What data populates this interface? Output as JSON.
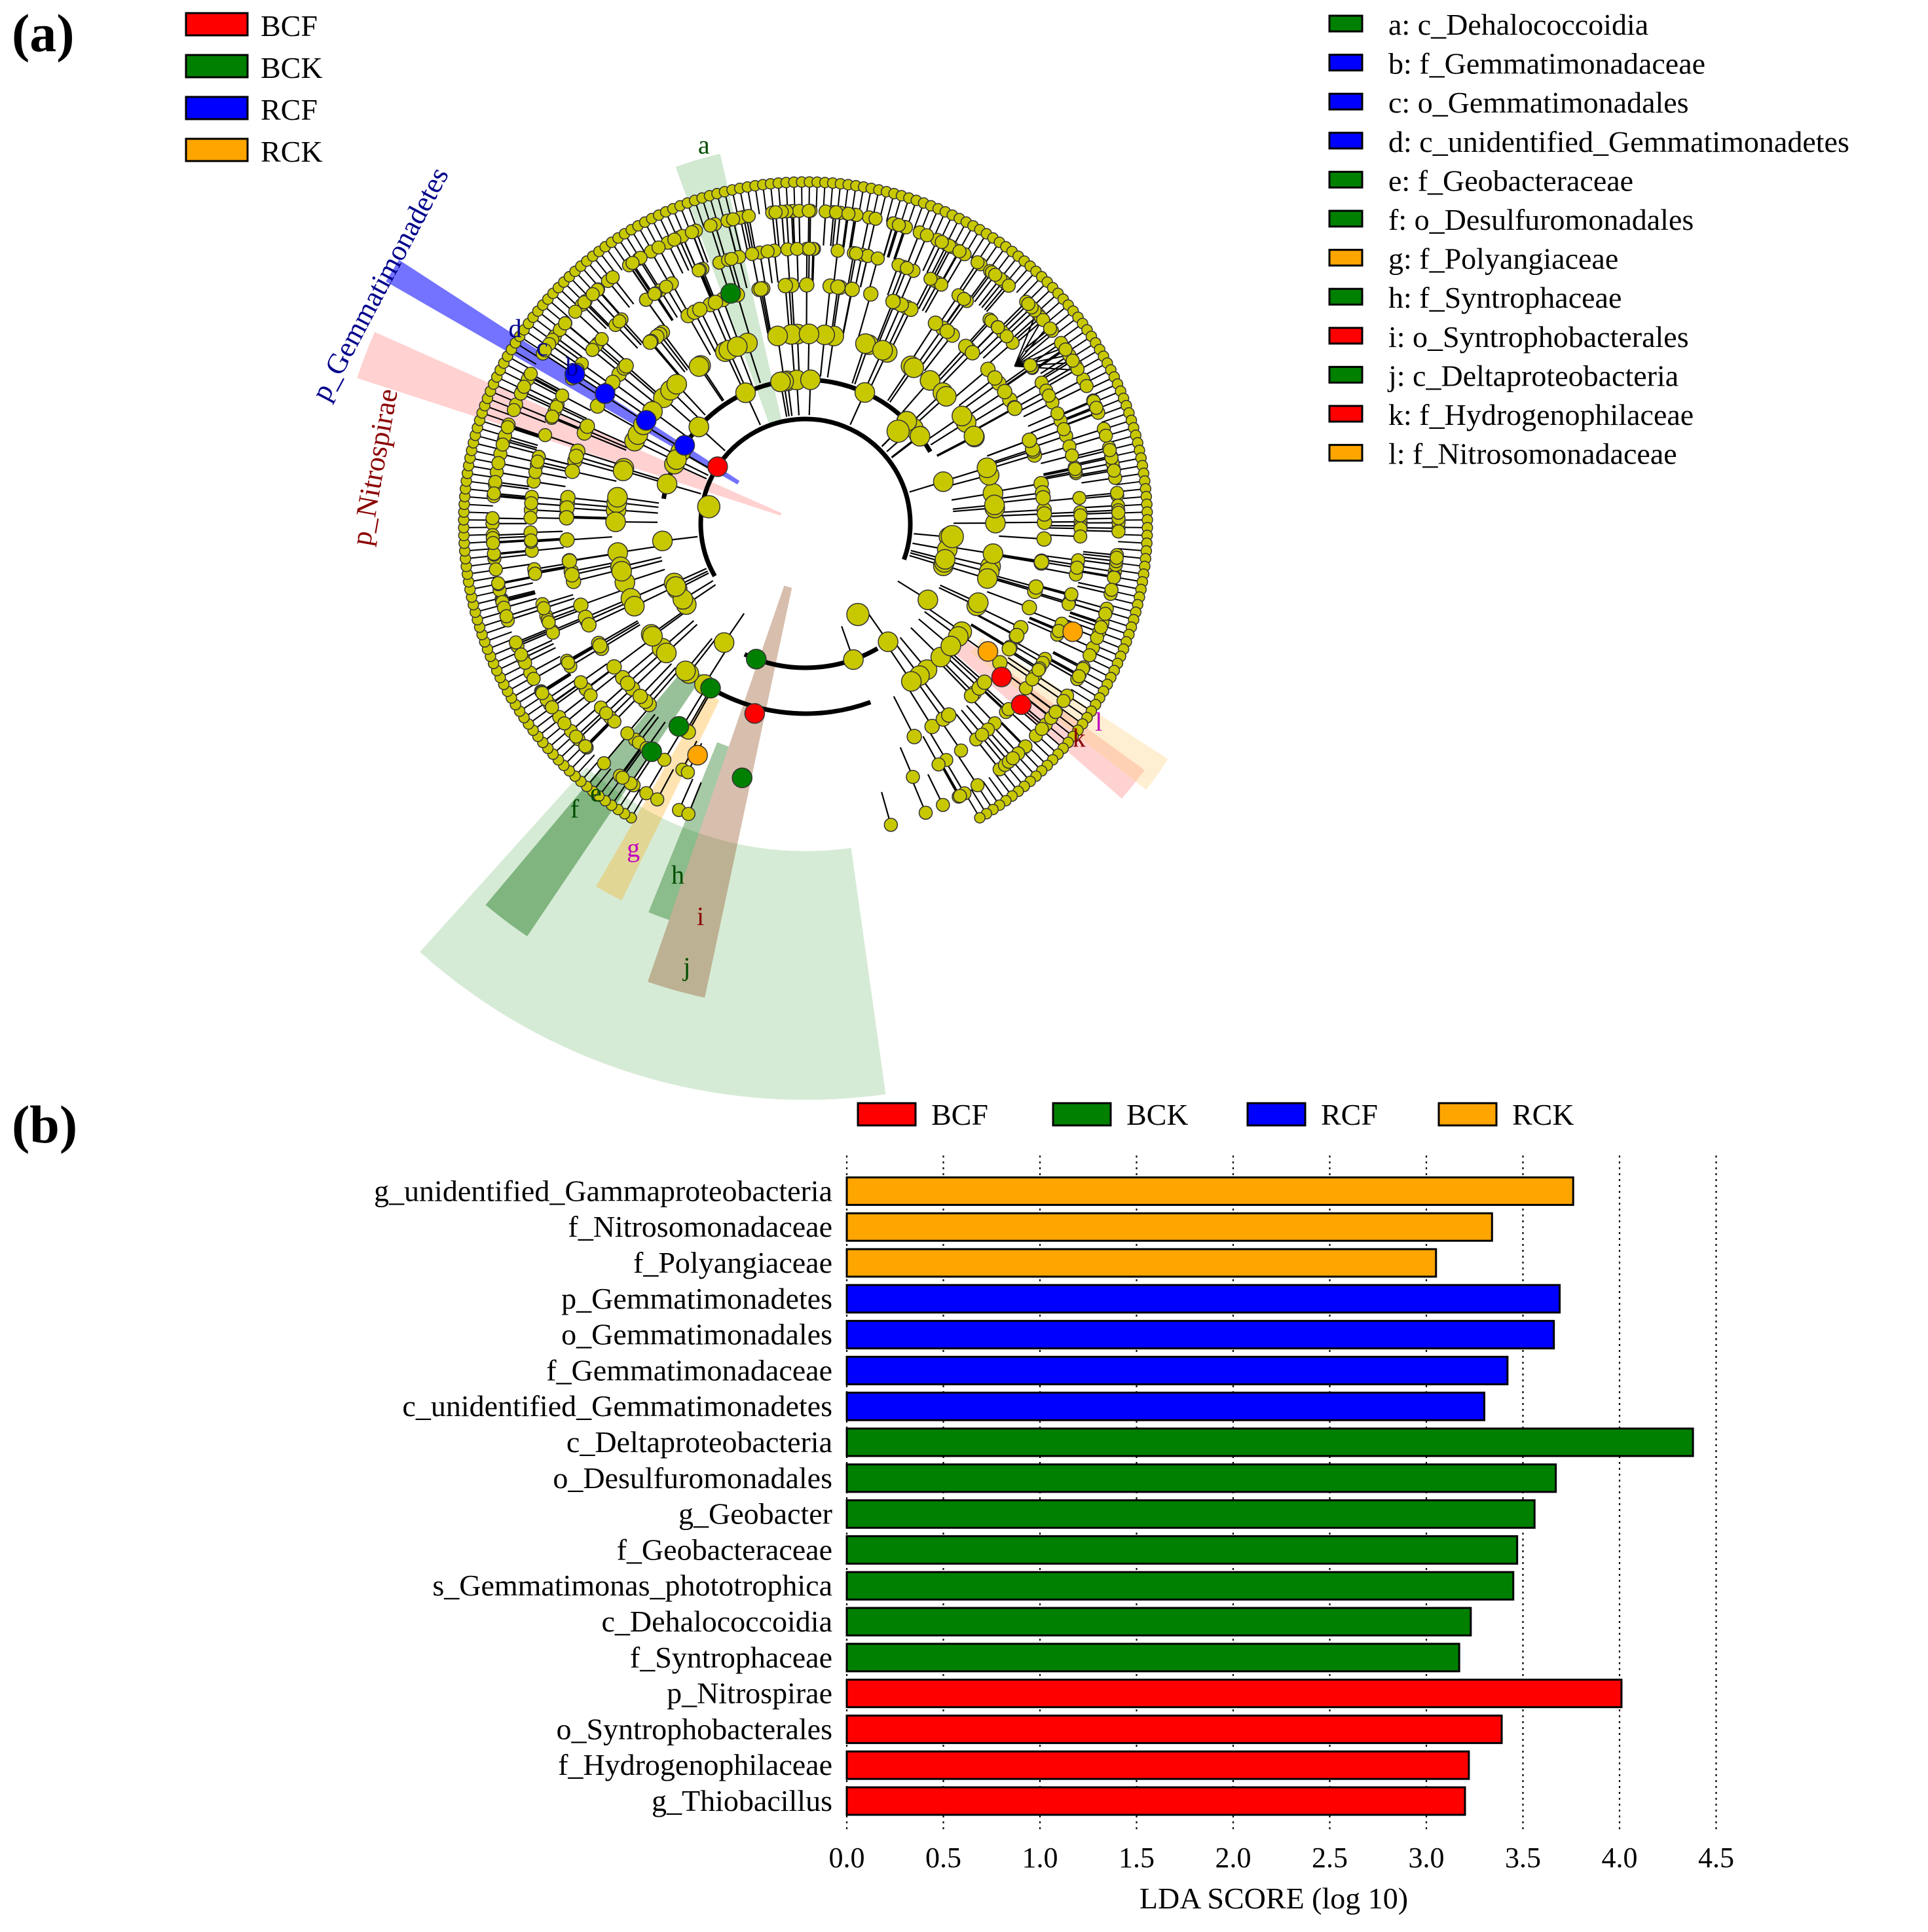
{
  "panel_a": {
    "label": "(a)",
    "group_legend": [
      {
        "name": "BCF",
        "color": "#ff0000"
      },
      {
        "name": "BCK",
        "color": "#008000"
      },
      {
        "name": "RCF",
        "color": "#0000ff"
      },
      {
        "name": "RCK",
        "color": "#ffa500"
      }
    ],
    "clade_legend": [
      {
        "key": "a",
        "text": "a: c_Dehalococcoidia",
        "group": "BCK",
        "color": "#008000"
      },
      {
        "key": "b",
        "text": "b: f_Gemmatimonadaceae",
        "group": "RCF",
        "color": "#0000ff"
      },
      {
        "key": "c",
        "text": "c: o_Gemmatimonadales",
        "group": "RCF",
        "color": "#0000ff"
      },
      {
        "key": "d",
        "text": "d: c_unidentified_Gemmatimonadetes",
        "group": "RCF",
        "color": "#0000ff"
      },
      {
        "key": "e",
        "text": "e: f_Geobacteraceae",
        "group": "BCK",
        "color": "#008000"
      },
      {
        "key": "f",
        "text": "f: o_Desulfuromonadales",
        "group": "BCK",
        "color": "#008000"
      },
      {
        "key": "g",
        "text": "g: f_Polyangiaceae",
        "group": "RCK",
        "color": "#ffa500"
      },
      {
        "key": "h",
        "text": "h: f_Syntrophaceae",
        "group": "BCK",
        "color": "#008000"
      },
      {
        "key": "i",
        "text": "i: o_Syntrophobacterales",
        "group": "BCF",
        "color": "#ff0000"
      },
      {
        "key": "j",
        "text": "j: c_Deltaproteobacteria",
        "group": "BCK",
        "color": "#008000"
      },
      {
        "key": "k",
        "text": "k: f_Hydrogenophilaceae",
        "group": "BCF",
        "color": "#ff0000"
      },
      {
        "key": "l",
        "text": "l: f_Nitrosomonadaceae",
        "group": "RCK",
        "color": "#ffa500"
      }
    ],
    "phylum_labels": [
      {
        "text": "p_Gemmatimonadetes",
        "color": "#00008b"
      },
      {
        "text": "p_Nitrospirae",
        "color": "#8b0000"
      }
    ],
    "node_color": "#c8c800"
  },
  "chart_data": {
    "type": "bar",
    "orientation": "horizontal",
    "panel_label": "(b)",
    "xlabel": "LDA SCORE (log 10)",
    "xlim": [
      0,
      4.5
    ],
    "xticks": [
      "0.0",
      "0.5",
      "1.0",
      "1.5",
      "2.0",
      "2.5",
      "3.0",
      "3.5",
      "4.0",
      "4.5"
    ],
    "grid": "vertical dotted",
    "legend": [
      {
        "name": "BCF",
        "color": "#ff0000"
      },
      {
        "name": "BCK",
        "color": "#008000"
      },
      {
        "name": "RCF",
        "color": "#0000ff"
      },
      {
        "name": "RCK",
        "color": "#ffa500"
      }
    ],
    "categories": [
      "g_unidentified_Gammaproteobacteria",
      "f_Nitrosomonadaceae",
      "f_Polyangiaceae",
      "p_Gemmatimonadetes",
      "o_Gemmatimonadales",
      "f_Gemmatimonadaceae",
      "c_unidentified_Gemmatimonadetes",
      "c_Deltaproteobacteria",
      "o_Desulfuromonadales",
      "g_Geobacter",
      "f_Geobacteraceae",
      "s_Gemmatimonas_phototrophica",
      "c_Dehalococcoidia",
      "f_Syntrophaceae",
      "p_Nitrospirae",
      "o_Syntrophobacterales",
      "f_Hydrogenophilaceae",
      "g_Thiobacillus"
    ],
    "values": [
      3.76,
      3.34,
      3.05,
      3.69,
      3.66,
      3.42,
      3.3,
      4.38,
      3.67,
      3.56,
      3.47,
      3.45,
      3.23,
      3.17,
      4.01,
      3.39,
      3.22,
      3.2
    ],
    "groups": [
      "RCK",
      "RCK",
      "RCK",
      "RCF",
      "RCF",
      "RCF",
      "RCF",
      "BCK",
      "BCK",
      "BCK",
      "BCK",
      "BCK",
      "BCK",
      "BCK",
      "BCF",
      "BCF",
      "BCF",
      "BCF"
    ]
  }
}
